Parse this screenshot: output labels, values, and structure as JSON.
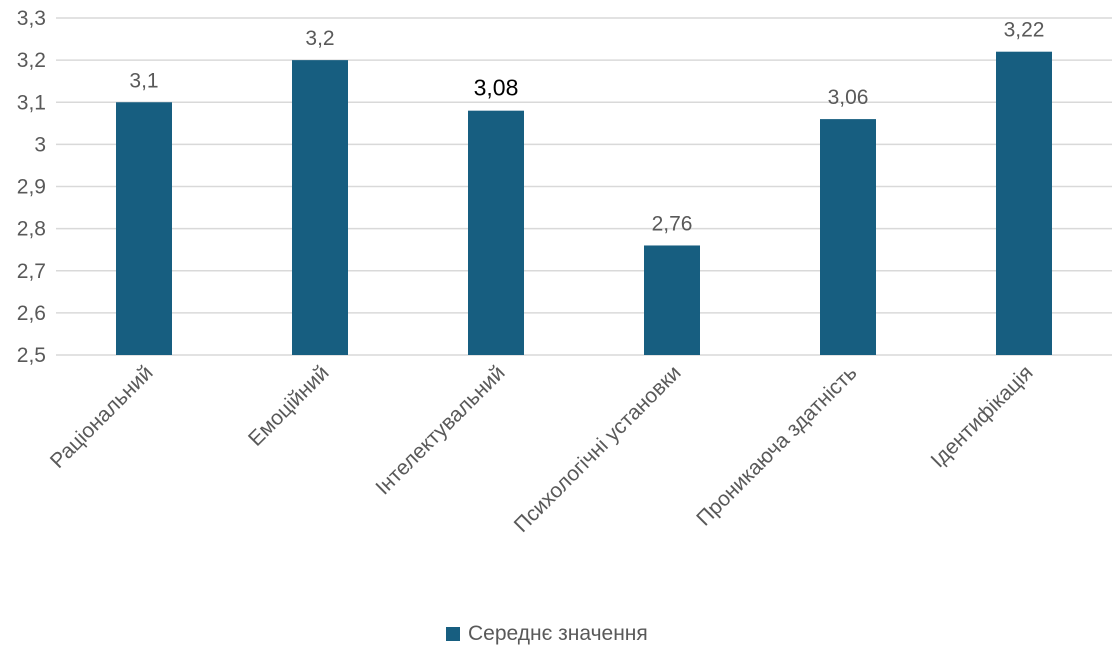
{
  "chart_data": {
    "type": "bar",
    "categories": [
      "Раціональний",
      "Емоційний",
      "Інтелектувальний",
      "Психологічні установки",
      "Проникаюча здатність",
      "Ідентифікація"
    ],
    "series": [
      {
        "name": "Середнє значення",
        "values": [
          3.1,
          3.2,
          3.08,
          2.76,
          3.06,
          3.22
        ],
        "color": "#175e80"
      }
    ],
    "data_labels": [
      "3,1",
      "3,2",
      "3,08",
      "2,76",
      "3,06",
      "3,22"
    ],
    "ylim": [
      2.5,
      3.3
    ],
    "yticks": [
      "2,5",
      "2,6",
      "2,7",
      "2,8",
      "2,9",
      "3",
      "3,1",
      "3,2",
      "3,3"
    ],
    "grid": true,
    "legend_position": "bottom",
    "title": "",
    "xlabel": "",
    "ylabel": ""
  }
}
